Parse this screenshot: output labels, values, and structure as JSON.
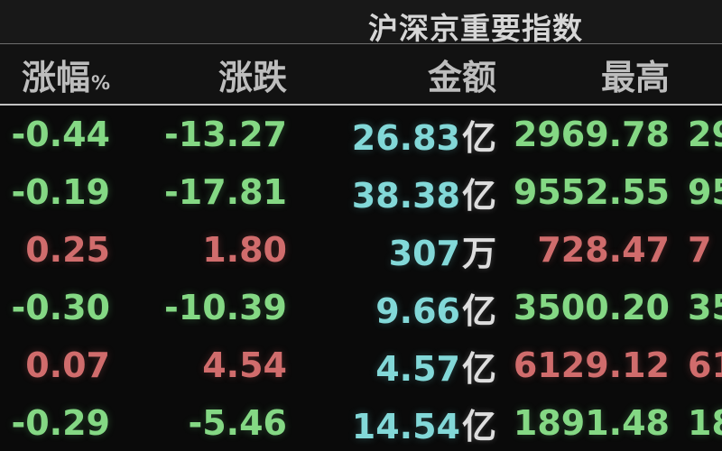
{
  "app": {
    "title": "沪深京重要指数"
  },
  "table": {
    "headers": {
      "change_pct": "涨幅",
      "change_pct_unit": "%",
      "change": "涨跌",
      "amount": "金额",
      "high": "最高"
    },
    "rows": [
      {
        "change_pct": "-0.44",
        "change": "-13.27",
        "amount": "26.83",
        "amount_unit": "亿",
        "high": "2969.78",
        "next_clipped": "29",
        "trend": "down"
      },
      {
        "change_pct": "-0.19",
        "change": "-17.81",
        "amount": "38.38",
        "amount_unit": "亿",
        "high": "9552.55",
        "next_clipped": "95",
        "trend": "down"
      },
      {
        "change_pct": "0.25",
        "change": "1.80",
        "amount": "307",
        "amount_unit": "万",
        "high": "728.47",
        "next_clipped": "7",
        "trend": "up"
      },
      {
        "change_pct": "-0.30",
        "change": "-10.39",
        "amount": "9.66",
        "amount_unit": "亿",
        "high": "3500.20",
        "next_clipped": "35",
        "trend": "down"
      },
      {
        "change_pct": "0.07",
        "change": "4.54",
        "amount": "4.57",
        "amount_unit": "亿",
        "high": "6129.12",
        "next_clipped": "61",
        "trend": "up"
      },
      {
        "change_pct": "-0.29",
        "change": "-5.46",
        "amount": "14.54",
        "amount_unit": "亿",
        "high": "1891.48",
        "next_clipped": "18",
        "trend": "down"
      }
    ]
  },
  "colors": {
    "up_red": "#d06c6c",
    "down_green": "#84d884",
    "amount_cyan": "#82d8d8",
    "unit_white": "#dedede",
    "background": "#0a0a0a"
  }
}
